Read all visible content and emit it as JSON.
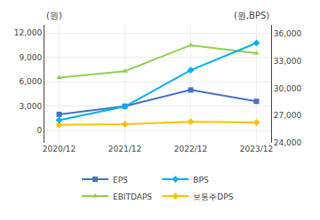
{
  "chart_data": {
    "type": "line",
    "categories": [
      "2020/12",
      "2021/12",
      "2022/12",
      "2023/12"
    ],
    "series": [
      {
        "name": "EPS",
        "color": "#4472C4",
        "marker": "square",
        "values": [
          2000,
          3000,
          5000,
          3600
        ]
      },
      {
        "name": "BPS",
        "color": "#00B0F0",
        "marker": "diamond",
        "axis": "y2",
        "values": [
          26500,
          28000,
          32000,
          35000
        ]
      },
      {
        "name": "EBITDAPS",
        "color": "#92D050",
        "marker": "triangle-up",
        "values": [
          6500,
          7300,
          10500,
          9500
        ]
      },
      {
        "name": "보통주DPS",
        "color": "#FFC000",
        "marker": "diamond",
        "values": [
          700,
          800,
          1100,
          1000
        ]
      }
    ],
    "ylabel": "(원)",
    "y2label": "(원,BPS)",
    "ylim": [
      -1500,
      13000
    ],
    "yticks": [
      0,
      {
        "value": 3000,
        "label": "3,000"
      },
      {
        "value": 6000,
        "label": "6,000"
      },
      {
        "value": 9000,
        "label": "9,000"
      },
      {
        "value": 12000,
        "label": "12,000"
      }
    ],
    "y2lim": [
      24000,
      37000
    ],
    "y2ticks": [
      {
        "value": 24000,
        "label": "24,000"
      },
      {
        "value": 27000,
        "label": "27,000"
      },
      {
        "value": 30000,
        "label": "30,000"
      },
      {
        "value": 33000,
        "label": "33,000"
      },
      {
        "value": 36000,
        "label": "36,000"
      }
    ],
    "grid": true,
    "legend": "bottom"
  }
}
